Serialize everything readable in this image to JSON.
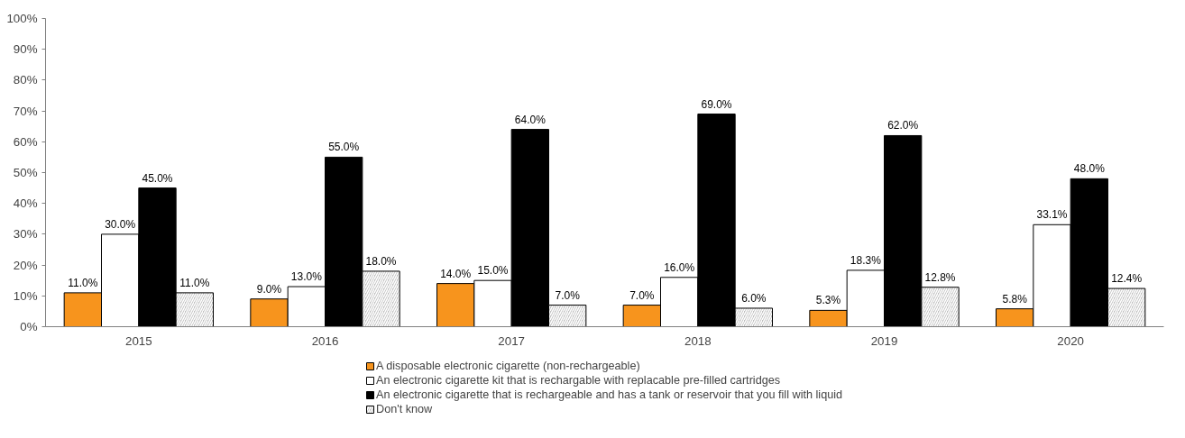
{
  "chart_data": {
    "type": "bar",
    "categories": [
      "2015",
      "2016",
      "2017",
      "2018",
      "2019",
      "2020"
    ],
    "series": [
      {
        "name": "A disposable electronic cigarette (non-rechargeable)",
        "color": "#f7941d",
        "values": [
          11.0,
          9.0,
          14.0,
          7.0,
          5.3,
          5.8
        ],
        "value_labels": [
          "11.0%",
          "9.0%",
          "14.0%",
          "7.0%",
          "5.3%",
          "5.8%"
        ]
      },
      {
        "name": "An electronic cigarette kit that is rechargable with replacable pre-filled cartridges",
        "color": "#ffffff",
        "values": [
          30.0,
          13.0,
          15.0,
          16.0,
          18.3,
          33.1
        ],
        "value_labels": [
          "30.0%",
          "13.0%",
          "15.0%",
          "16.0%",
          "18.3%",
          "33.1%"
        ]
      },
      {
        "name": "An electronic cigarette that is rechargeable and has a tank or reservoir that you fill with liquid",
        "color": "#000000",
        "values": [
          45.0,
          55.0,
          64.0,
          69.0,
          62.0,
          48.0
        ],
        "value_labels": [
          "45.0%",
          "55.0%",
          "64.0%",
          "69.0%",
          "62.0%",
          "48.0%"
        ]
      },
      {
        "name": "Don't know",
        "color": "#bfbfbf",
        "values": [
          11.0,
          18.0,
          7.0,
          6.0,
          12.8,
          12.4
        ],
        "value_labels": [
          "11.0%",
          "18.0%",
          "7.0%",
          "6.0%",
          "12.8%",
          "12.4%"
        ]
      }
    ],
    "ylim": [
      0,
      100
    ],
    "yticks": [
      {
        "value": 0,
        "label": "0%"
      },
      {
        "value": 10,
        "label": "10%"
      },
      {
        "value": 20,
        "label": "20%"
      },
      {
        "value": 30,
        "label": "30%"
      },
      {
        "value": 40,
        "label": "40%"
      },
      {
        "value": 50,
        "label": "50%"
      },
      {
        "value": 60,
        "label": "60%"
      },
      {
        "value": 70,
        "label": "70%"
      },
      {
        "value": 80,
        "label": "80%"
      },
      {
        "value": 90,
        "label": "90%"
      },
      {
        "value": 100,
        "label": "100%"
      }
    ],
    "legend": "bottom"
  }
}
